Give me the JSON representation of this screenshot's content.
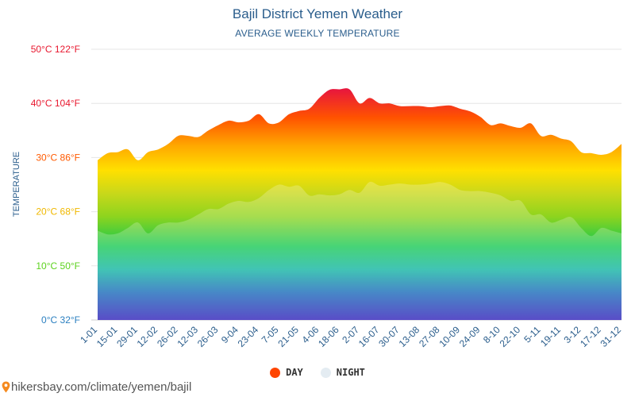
{
  "header": {
    "title": "Bajil District Yemen Weather",
    "subtitle": "AVERAGE WEEKLY TEMPERATURE"
  },
  "footer": {
    "url": "hikersbay.com/climate/yemen/bajil"
  },
  "legend": {
    "day_label": "DAY",
    "night_label": "NIGHT",
    "day_color": "#ff4500",
    "night_color": "#e4ecf2"
  },
  "colors": {
    "title": "#2a5d8c",
    "axis_text": "#2a5d8c",
    "grid": "#e6e6e6"
  },
  "chart_data": {
    "type": "area",
    "title": "Bajil District Yemen Weather",
    "subtitle": "AVERAGE WEEKLY TEMPERATURE",
    "ylabel": "TEMPERATURE",
    "ylim": [
      0,
      50
    ],
    "grid": true,
    "legend_position": "bottom",
    "y_ticks": [
      {
        "value": 0,
        "label": "0°C 32°F",
        "color": "#2a7fc0"
      },
      {
        "value": 10,
        "label": "10°C 50°F",
        "color": "#5cd21e"
      },
      {
        "value": 20,
        "label": "20°C 68°F",
        "color": "#f0b800"
      },
      {
        "value": 30,
        "label": "30°C 86°F",
        "color": "#ff5a00"
      },
      {
        "value": 40,
        "label": "40°C 104°F",
        "color": "#e8172e"
      },
      {
        "value": 50,
        "label": "50°C 122°F",
        "color": "#e8172e"
      }
    ],
    "x_tick_labels": [
      "1-01",
      "15-01",
      "29-01",
      "12-02",
      "26-02",
      "12-03",
      "26-03",
      "9-04",
      "23-04",
      "7-05",
      "21-05",
      "4-06",
      "18-06",
      "2-07",
      "16-07",
      "30-07",
      "13-08",
      "27-08",
      "10-09",
      "24-09",
      "8-10",
      "22-10",
      "5-11",
      "19-11",
      "3-12",
      "17-12",
      "31-12"
    ],
    "series": [
      {
        "name": "DAY",
        "x": [
          "1-01",
          "8-01",
          "15-01",
          "22-01",
          "29-01",
          "5-02",
          "12-02",
          "19-02",
          "26-02",
          "5-03",
          "12-03",
          "19-03",
          "26-03",
          "2-04",
          "9-04",
          "16-04",
          "23-04",
          "30-04",
          "7-05",
          "14-05",
          "21-05",
          "28-05",
          "4-06",
          "11-06",
          "18-06",
          "25-06",
          "2-07",
          "9-07",
          "16-07",
          "23-07",
          "30-07",
          "6-08",
          "13-08",
          "20-08",
          "27-08",
          "3-09",
          "10-09",
          "17-09",
          "24-09",
          "1-10",
          "8-10",
          "15-10",
          "22-10",
          "29-10",
          "5-11",
          "12-11",
          "19-11",
          "26-11",
          "3-12",
          "10-12",
          "17-12",
          "24-12",
          "31-12"
        ],
        "values": [
          29.5,
          30.8,
          31.0,
          31.5,
          29.5,
          31.0,
          31.5,
          32.5,
          34.0,
          34.0,
          33.8,
          35.0,
          36.0,
          36.8,
          36.5,
          36.8,
          38.0,
          36.3,
          36.5,
          38.0,
          38.6,
          39.0,
          41.0,
          42.5,
          42.6,
          42.6,
          40.0,
          41.0,
          40.0,
          40.0,
          39.5,
          39.5,
          39.5,
          39.3,
          39.5,
          39.6,
          39.0,
          38.5,
          37.5,
          36.0,
          36.3,
          35.8,
          35.5,
          36.3,
          34.0,
          34.2,
          33.5,
          33.0,
          31.0,
          30.8,
          30.5,
          31.0,
          32.5
        ]
      },
      {
        "name": "NIGHT",
        "x": [
          "1-01",
          "8-01",
          "15-01",
          "22-01",
          "29-01",
          "5-02",
          "12-02",
          "19-02",
          "26-02",
          "5-03",
          "12-03",
          "19-03",
          "26-03",
          "2-04",
          "9-04",
          "16-04",
          "23-04",
          "30-04",
          "7-05",
          "14-05",
          "21-05",
          "28-05",
          "4-06",
          "11-06",
          "18-06",
          "25-06",
          "2-07",
          "9-07",
          "16-07",
          "23-07",
          "30-07",
          "6-08",
          "13-08",
          "20-08",
          "27-08",
          "3-09",
          "10-09",
          "17-09",
          "24-09",
          "1-10",
          "8-10",
          "15-10",
          "22-10",
          "29-10",
          "5-11",
          "12-11",
          "19-11",
          "26-11",
          "3-12",
          "10-12",
          "17-12",
          "24-12",
          "31-12"
        ],
        "values": [
          16.5,
          15.8,
          16.0,
          17.0,
          18.0,
          16.0,
          17.5,
          18.0,
          18.0,
          18.5,
          19.5,
          20.5,
          20.5,
          21.5,
          22.0,
          21.8,
          22.5,
          24.0,
          25.0,
          24.6,
          24.8,
          23.0,
          23.2,
          23.0,
          23.2,
          24.0,
          23.5,
          25.5,
          24.8,
          25.0,
          25.2,
          25.0,
          25.0,
          25.2,
          25.5,
          25.0,
          24.0,
          23.8,
          23.8,
          23.5,
          23.0,
          22.0,
          22.0,
          19.5,
          19.5,
          18.0,
          18.5,
          19.0,
          17.0,
          15.5,
          17.0,
          16.5,
          16.0
        ]
      }
    ]
  }
}
